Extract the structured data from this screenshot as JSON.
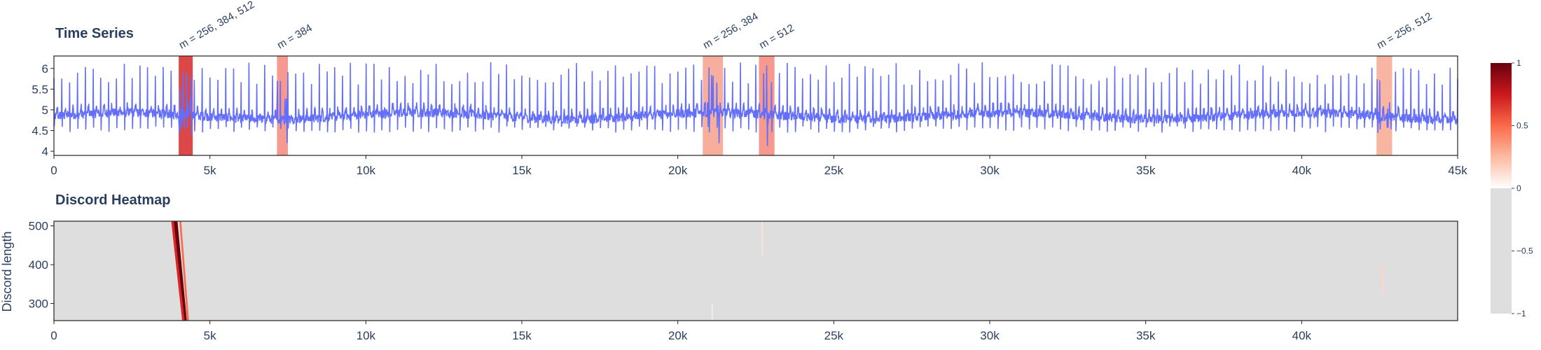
{
  "chart_data": [
    {
      "type": "line",
      "title": "Time Series",
      "x_range": [
        0,
        45000
      ],
      "y_range": [
        3.9,
        6.3
      ],
      "x_ticks": [
        0,
        5000,
        10000,
        15000,
        20000,
        25000,
        30000,
        35000,
        40000,
        45000
      ],
      "x_tick_labels": [
        "0",
        "5k",
        "10k",
        "15k",
        "20k",
        "25k",
        "30k",
        "35k",
        "40k",
        "45k"
      ],
      "y_ticks": [
        4,
        4.5,
        5,
        5.5,
        6
      ],
      "y_tick_labels": [
        "4",
        "4.5",
        "5",
        "5.5",
        "6"
      ],
      "series_color": "#636efa",
      "signal": {
        "baseline": 4.85,
        "noise_band": [
          4.6,
          5.1
        ],
        "beat_period": 250,
        "peak_range": [
          5.6,
          6.15
        ],
        "trough_range": [
          4.45,
          4.6
        ]
      },
      "discord_regions": [
        {
          "x0": 4000,
          "x1": 4450,
          "label": "m = 256, 384, 512",
          "color": "#d62728"
        },
        {
          "x0": 7150,
          "x1": 7500,
          "label": "m = 384",
          "color": "#f4877a"
        },
        {
          "x0": 20800,
          "x1": 21450,
          "label": "m = 256, 384",
          "color": "#f7a08c"
        },
        {
          "x0": 22600,
          "x1": 23100,
          "label": "m = 512",
          "color": "#f4877a"
        },
        {
          "x0": 42400,
          "x1": 42900,
          "label": "m = 256, 512",
          "color": "#f7a890"
        }
      ]
    },
    {
      "type": "heatmap",
      "title": "Discord Heatmap",
      "ylabel": "Discord length",
      "x_range": [
        0,
        45000
      ],
      "y_range": [
        256,
        512
      ],
      "x_ticks": [
        0,
        5000,
        10000,
        15000,
        20000,
        25000,
        30000,
        35000,
        40000
      ],
      "x_tick_labels": [
        "0",
        "5k",
        "10k",
        "15k",
        "20k",
        "25k",
        "30k",
        "35k",
        "40k"
      ],
      "y_ticks": [
        300,
        400,
        500
      ],
      "y_tick_labels": [
        "300",
        "400",
        "500"
      ],
      "background_value": -1,
      "features": [
        {
          "x_at_top": 3900,
          "x_at_bottom": 4200,
          "width": 120,
          "value": 1
        },
        {
          "x_at_top": 3800,
          "x_at_bottom": 4150,
          "width": 80,
          "value": 0.7
        },
        {
          "x_at_top": 4050,
          "x_at_bottom": 4300,
          "width": 60,
          "value": 0.5
        },
        {
          "x_at_top": 22700,
          "x_at_bottom": 22720,
          "width": 40,
          "value": 0.1,
          "y_range": [
            420,
            512
          ]
        },
        {
          "x_at_top": 21100,
          "x_at_bottom": 21100,
          "width": 30,
          "value": -0.3,
          "y_range": [
            256,
            300
          ]
        },
        {
          "x_at_top": 42550,
          "x_at_bottom": 42600,
          "width": 60,
          "value": 0.15,
          "y_range": [
            330,
            400
          ]
        }
      ],
      "colorbar": {
        "range": [
          -1,
          1
        ],
        "tick_values": [
          1,
          0.5,
          0,
          -0.5,
          -1
        ],
        "tick_labels": [
          "1",
          "0.5",
          "0",
          "−0.5",
          "−1"
        ],
        "colors_positive": [
          "#ffffff",
          "#fcbba1",
          "#fb6a4a",
          "#cb181d",
          "#67000d"
        ],
        "color_negative": "#dedede"
      }
    }
  ]
}
